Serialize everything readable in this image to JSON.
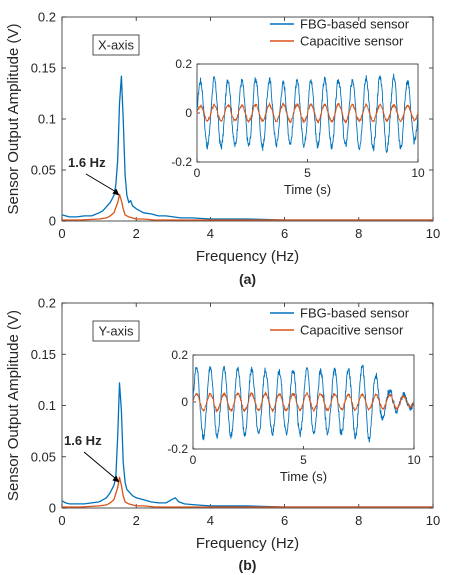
{
  "colors": {
    "fbg": "#0072BD",
    "capacitive": "#D95319",
    "axis": "#262626",
    "text": "#262626"
  },
  "chart_data": [
    {
      "type": "line",
      "panel_label": "(a)",
      "axis_box_label": "X-axis",
      "xlabel": "Frequency (Hz)",
      "ylabel": "Sensor Output Amplitude (V)",
      "xlim": [
        0,
        10
      ],
      "ylim": [
        0,
        0.2
      ],
      "x_ticks": [
        0,
        2,
        4,
        6,
        8,
        10
      ],
      "x_tick_labels": [
        "0",
        "2",
        "4",
        "6",
        "8",
        "10"
      ],
      "y_ticks": [
        0,
        0.05,
        0.1,
        0.15,
        0.2
      ],
      "y_tick_labels": [
        "0",
        "0.05",
        "0.1",
        "0.15",
        "0.2"
      ],
      "grid": false,
      "annotation": {
        "text": "1.6 Hz",
        "x": 1.6,
        "y": 0.025
      },
      "legend": {
        "placement": "top-right",
        "entries": [
          "FBG-based sensor",
          "Capacitive sensor"
        ]
      },
      "series": [
        {
          "name": "FBG-based sensor",
          "x": [
            0,
            0.1,
            0.2,
            0.4,
            0.6,
            0.8,
            1.0,
            1.1,
            1.2,
            1.3,
            1.4,
            1.45,
            1.5,
            1.55,
            1.6,
            1.65,
            1.7,
            1.75,
            1.8,
            1.85,
            1.9,
            2.0,
            2.1,
            2.2,
            2.4,
            2.6,
            2.8,
            3.0,
            3.2,
            3.5,
            4,
            5,
            6,
            7,
            8,
            9,
            10
          ],
          "y": [
            0.006,
            0.005,
            0.004,
            0.004,
            0.005,
            0.005,
            0.008,
            0.01,
            0.014,
            0.018,
            0.025,
            0.035,
            0.06,
            0.115,
            0.142,
            0.1,
            0.045,
            0.025,
            0.018,
            0.02,
            0.015,
            0.012,
            0.01,
            0.008,
            0.007,
            0.005,
            0.005,
            0.004,
            0.003,
            0.003,
            0.002,
            0.002,
            0.001,
            0.001,
            0.001,
            0.001,
            0.001
          ]
        },
        {
          "name": "Capacitive sensor",
          "x": [
            0,
            0.5,
            1.0,
            1.2,
            1.3,
            1.4,
            1.5,
            1.55,
            1.6,
            1.65,
            1.7,
            1.8,
            1.9,
            2.0,
            2.2,
            2.5,
            3,
            4,
            6,
            8,
            10
          ],
          "y": [
            0.001,
            0.001,
            0.002,
            0.003,
            0.005,
            0.008,
            0.018,
            0.026,
            0.02,
            0.012,
            0.006,
            0.004,
            0.003,
            0.002,
            0.002,
            0.001,
            0.001,
            0.001,
            0.001,
            0.001,
            0.001
          ]
        }
      ],
      "inset": {
        "type": "line",
        "xlabel": "Time (s)",
        "xlim": [
          0,
          10
        ],
        "ylim": [
          -0.2,
          0.2
        ],
        "x_ticks": [
          0,
          5,
          10
        ],
        "x_tick_labels": [
          "0",
          "5",
          "10"
        ],
        "y_ticks": [
          -0.2,
          0,
          0.2
        ],
        "y_tick_labels": [
          "-0.2",
          "0",
          "0.2"
        ],
        "frequency_hz": 1.6,
        "series": [
          {
            "name": "FBG-based sensor",
            "peak_times": [
              0,
              1,
              2,
              3,
              4,
              5,
              6,
              7,
              8,
              9,
              10
            ],
            "amplitudes": [
              0.13,
              0.14,
              0.13,
              0.14,
              0.12,
              0.13,
              0.14,
              0.13,
              0.15,
              0.15,
              0.11
            ]
          },
          {
            "name": "Capacitive sensor",
            "peak_times": [
              0,
              5,
              10
            ],
            "amplitudes": [
              0.03,
              0.035,
              0.03
            ]
          }
        ]
      }
    },
    {
      "type": "line",
      "panel_label": "(b)",
      "axis_box_label": "Y-axis",
      "xlabel": "Frequency (Hz)",
      "ylabel": "Sensor Output Amplitude (V)",
      "xlim": [
        0,
        10
      ],
      "ylim": [
        0,
        0.2
      ],
      "x_ticks": [
        0,
        2,
        4,
        6,
        8,
        10
      ],
      "x_tick_labels": [
        "0",
        "2",
        "4",
        "6",
        "8",
        "10"
      ],
      "y_ticks": [
        0,
        0.05,
        0.1,
        0.15,
        0.2
      ],
      "y_tick_labels": [
        "0",
        "0.05",
        "0.1",
        "0.15",
        "0.2"
      ],
      "grid": false,
      "annotation": {
        "text": "1.6 Hz",
        "x": 1.6,
        "y": 0.025
      },
      "legend": {
        "placement": "top-right",
        "entries": [
          "FBG-based sensor",
          "Capacitive sensor"
        ]
      },
      "series": [
        {
          "name": "FBG-based sensor",
          "x": [
            0,
            0.1,
            0.2,
            0.4,
            0.6,
            0.8,
            1.0,
            1.1,
            1.2,
            1.3,
            1.4,
            1.45,
            1.5,
            1.55,
            1.6,
            1.65,
            1.7,
            1.75,
            1.8,
            1.9,
            2.0,
            2.2,
            2.4,
            2.6,
            2.8,
            2.95,
            3.05,
            3.15,
            3.3,
            3.6,
            4,
            5,
            6,
            7,
            8,
            9,
            10
          ],
          "y": [
            0.007,
            0.005,
            0.004,
            0.004,
            0.004,
            0.005,
            0.006,
            0.008,
            0.01,
            0.015,
            0.022,
            0.03,
            0.07,
            0.122,
            0.095,
            0.045,
            0.025,
            0.018,
            0.016,
            0.012,
            0.01,
            0.008,
            0.006,
            0.005,
            0.005,
            0.008,
            0.01,
            0.006,
            0.004,
            0.003,
            0.002,
            0.002,
            0.001,
            0.001,
            0.001,
            0.001,
            0.001
          ]
        },
        {
          "name": "Capacitive sensor",
          "x": [
            0,
            0.5,
            1.0,
            1.2,
            1.3,
            1.4,
            1.5,
            1.55,
            1.6,
            1.65,
            1.7,
            1.8,
            1.9,
            2.0,
            2.2,
            2.5,
            3,
            4,
            6,
            8,
            10
          ],
          "y": [
            0.001,
            0.001,
            0.002,
            0.003,
            0.005,
            0.008,
            0.02,
            0.03,
            0.022,
            0.012,
            0.006,
            0.004,
            0.003,
            0.002,
            0.002,
            0.001,
            0.001,
            0.001,
            0.001,
            0.001,
            0.001
          ]
        }
      ],
      "inset": {
        "type": "line",
        "xlabel": "Time (s)",
        "xlim": [
          0,
          10
        ],
        "ylim": [
          -0.2,
          0.2
        ],
        "x_ticks": [
          0,
          5,
          10
        ],
        "x_tick_labels": [
          "0",
          "5",
          "10"
        ],
        "y_ticks": [
          -0.2,
          0,
          0.2
        ],
        "y_tick_labels": [
          "-0.2",
          "0",
          "0.2"
        ],
        "frequency_hz": 1.6,
        "series": [
          {
            "name": "FBG-based sensor",
            "peak_times": [
              0,
              1,
              2,
              3,
              4,
              5,
              6,
              7,
              8,
              8.5,
              9,
              9.5,
              10
            ],
            "amplitudes": [
              0.15,
              0.15,
              0.14,
              0.14,
              0.13,
              0.14,
              0.13,
              0.14,
              0.16,
              0.08,
              0.04,
              0.03,
              0.02
            ]
          },
          {
            "name": "Capacitive sensor",
            "peak_times": [
              0,
              5,
              9,
              10
            ],
            "amplitudes": [
              0.035,
              0.035,
              0.03,
              0.02
            ]
          }
        ]
      }
    }
  ]
}
